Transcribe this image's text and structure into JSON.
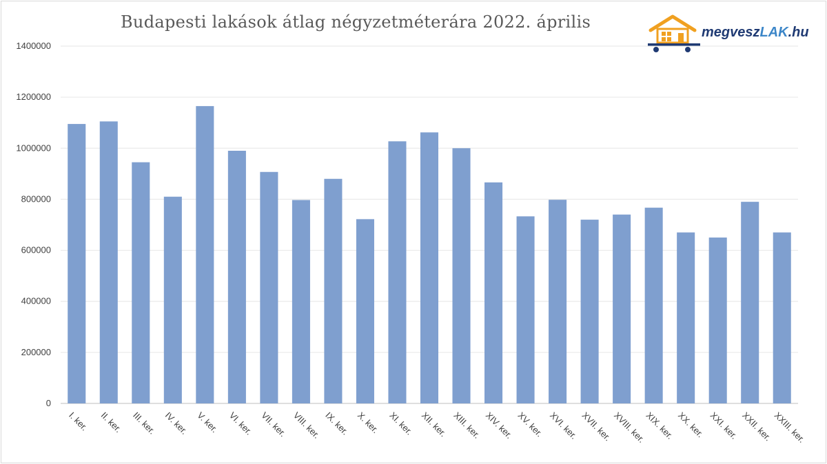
{
  "chart_data": {
    "type": "bar",
    "title": "Budapesti lakások átlag négyzetméterára 2022. április",
    "xlabel": "",
    "ylabel": "",
    "ylim": [
      0,
      1400000
    ],
    "yticks": [
      0,
      200000,
      400000,
      600000,
      800000,
      1000000,
      1200000,
      1400000
    ],
    "grid": true,
    "bar_color": "#7f9fcf",
    "categories": [
      "I. ker.",
      "II. ker.",
      "III. ker.",
      "IV. ker.",
      "V. ker.",
      "VI. ker.",
      "VII. ker.",
      "VIII. ker.",
      "IX. ker.",
      "X. ker.",
      "XI. ker.",
      "XII. ker.",
      "XIII. ker.",
      "XIV. ker.",
      "XV. ker.",
      "XVI. ker.",
      "XVII. ker.",
      "XVIII. ker.",
      "XIX. ker.",
      "XX. ker.",
      "XXI. ker.",
      "XXII. ker.",
      "XXIII. ker."
    ],
    "values": [
      1095000,
      1105000,
      945000,
      810000,
      1165000,
      990000,
      907000,
      797000,
      880000,
      722000,
      1027000,
      1062000,
      1000000,
      866000,
      733000,
      798000,
      720000,
      740000,
      767000,
      670000,
      650000,
      790000,
      670000
    ]
  },
  "logo": {
    "part1": "megvesz",
    "part2": "LAK",
    "part3": ".hu",
    "brand_dark": "#1f3a73",
    "brand_light": "#3c86c8",
    "accent_orange": "#f0a020",
    "icon": "house-cart-icon"
  }
}
